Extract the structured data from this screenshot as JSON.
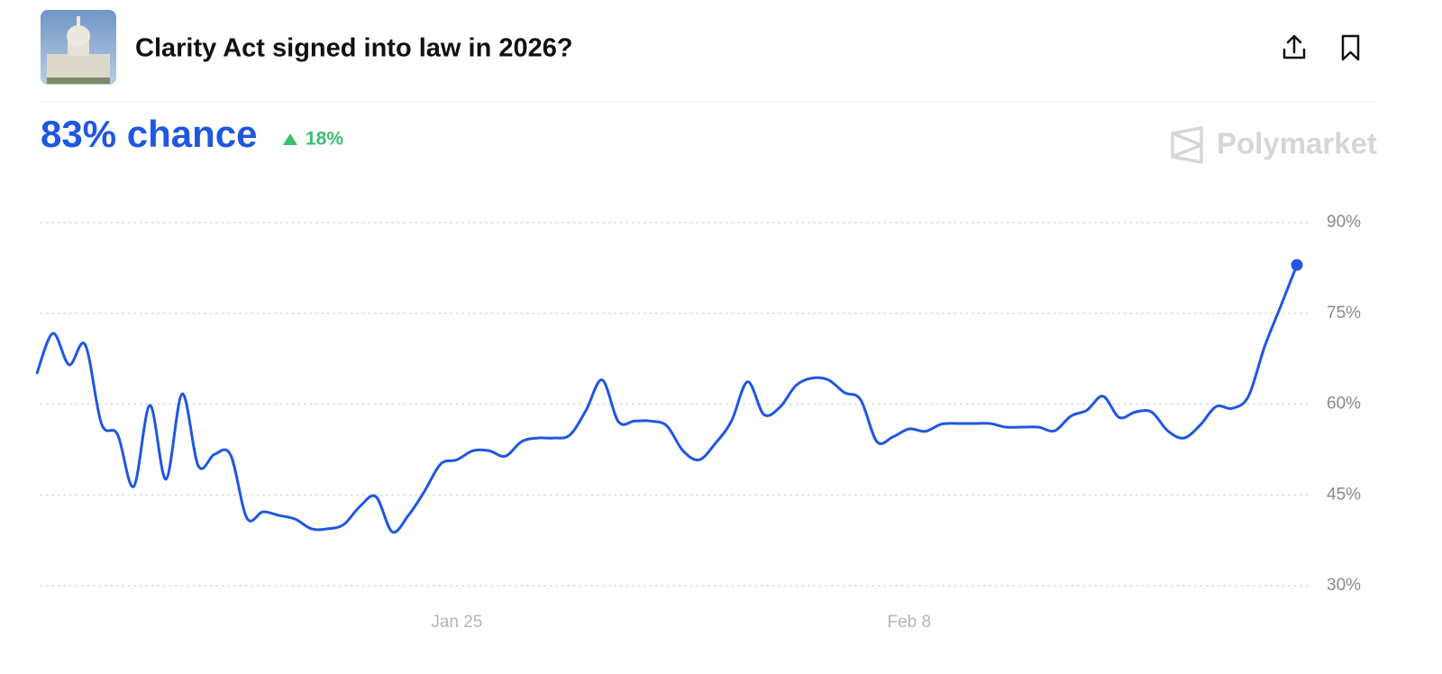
{
  "header": {
    "title": "Clarity Act signed into law in 2026?",
    "chance": "83% chance",
    "change": "18%",
    "brand": "Polymarket"
  },
  "chart_data": {
    "type": "line",
    "color": "#1f57e0",
    "categories": [
      null,
      null,
      null,
      null,
      null,
      null,
      null,
      null,
      null,
      null,
      null,
      null,
      null,
      null,
      null,
      null,
      null,
      null,
      null,
      null,
      null,
      null,
      null,
      null,
      null,
      null,
      "Jan 25",
      null,
      null,
      null,
      null,
      null,
      null,
      null,
      null,
      null,
      null,
      null,
      null,
      null,
      null,
      null,
      null,
      null,
      null,
      null,
      null,
      null,
      null,
      null,
      null,
      null,
      null,
      null,
      "Feb 8",
      null,
      null,
      null,
      null,
      null,
      null,
      null,
      null,
      null,
      null,
      null,
      null,
      null,
      null,
      null,
      null,
      null,
      null,
      null,
      null,
      null,
      null,
      null,
      null
    ],
    "values": [
      65,
      71.7,
      66.5,
      69.8,
      56.8,
      55,
      46.4,
      59.8,
      47.6,
      61.7,
      49.8,
      51.7,
      51.6,
      41.2,
      42.2,
      41.6,
      41,
      39.4,
      39.4,
      40.1,
      43.1,
      44.7,
      38.9,
      41.6,
      45.6,
      50.1,
      50.8,
      52.3,
      52.3,
      51.4,
      53.8,
      54.4,
      54.4,
      54.9,
      59,
      64,
      57.1,
      57.2,
      57.2,
      56.4,
      52.3,
      50.8,
      53.5,
      57.2,
      63.7,
      58.3,
      59.5,
      63.1,
      64.3,
      64,
      61.9,
      60.7,
      53.8,
      54.6,
      55.9,
      55.5,
      56.7,
      56.8,
      56.8,
      56.8,
      56.2,
      56.2,
      56.2,
      55.6,
      58,
      59,
      61.3,
      57.8,
      58.7,
      58.7,
      55.6,
      54.4,
      56.5,
      59.6,
      59.3,
      61.3,
      69.5,
      76.2,
      83
    ],
    "ylim": [
      30,
      90
    ],
    "yticks": [
      {
        "value": 30,
        "label": "30%"
      },
      {
        "value": 45,
        "label": "45%"
      },
      {
        "value": 60,
        "label": "60%"
      },
      {
        "value": 75,
        "label": "75%"
      },
      {
        "value": 90,
        "label": "90%"
      }
    ],
    "grid": true
  }
}
